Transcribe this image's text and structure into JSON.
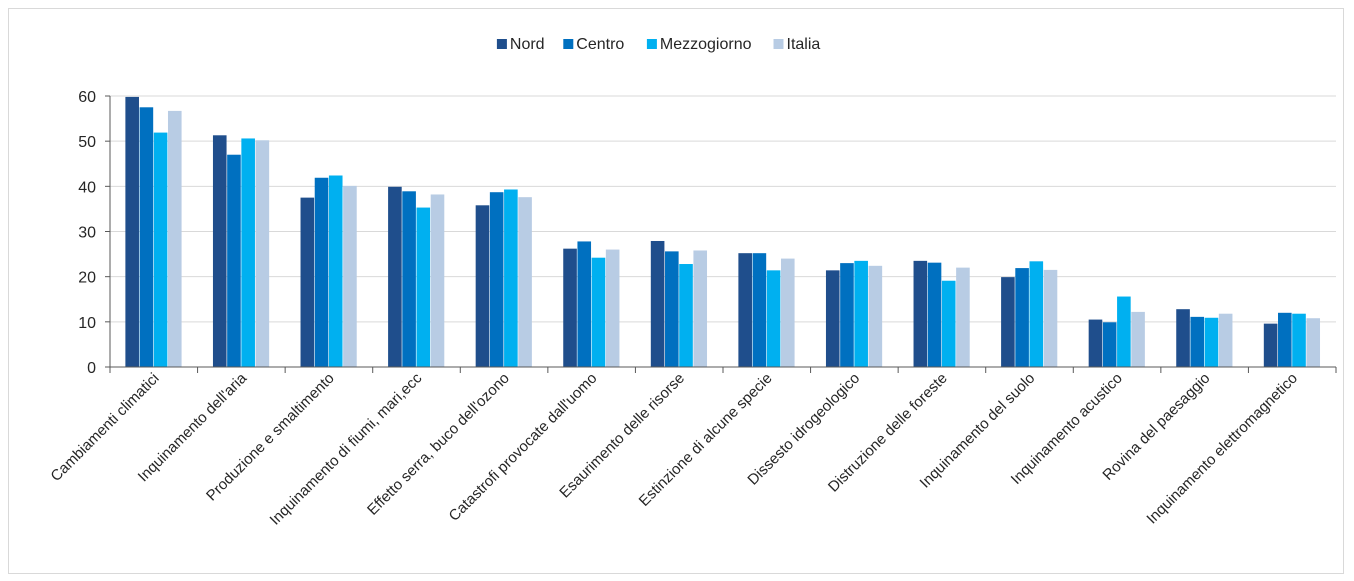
{
  "chart_data": {
    "type": "bar",
    "categories": [
      "Cambiamenti climatici",
      "Inquinamento dell'aria",
      "Produzione e smaltimento",
      "Inquinamento di fiumi, mari,ecc",
      "Effetto serra, buco dell'ozono",
      "Catastrofi provocate dall'uomo",
      "Esaurimento delle risorse",
      "Estinzione di alcune specie",
      "Dissesto idrogeologico",
      "Distruzione delle foreste",
      "Inquinamento del suolo",
      "Inquinamento acustico",
      "Rovina del paesaggio",
      "Inquinamento elettromagnetico"
    ],
    "series": [
      {
        "name": "Nord",
        "color": "#1f4e8c",
        "values": [
          59.8,
          51.3,
          37.5,
          39.9,
          35.8,
          26.2,
          27.9,
          25.2,
          21.4,
          23.5,
          19.9,
          10.5,
          12.8,
          9.6
        ]
      },
      {
        "name": "Centro",
        "color": "#0070c0",
        "values": [
          57.5,
          47.0,
          41.9,
          38.9,
          38.7,
          27.8,
          25.6,
          25.2,
          23.0,
          23.1,
          21.9,
          9.9,
          11.1,
          12.0
        ]
      },
      {
        "name": "Mezzogiorno",
        "color": "#00b0f0",
        "values": [
          51.9,
          50.6,
          42.4,
          35.3,
          39.3,
          24.2,
          22.8,
          21.4,
          23.5,
          19.1,
          23.4,
          15.6,
          10.9,
          11.8
        ]
      },
      {
        "name": "Italia",
        "color": "#b8cce4",
        "values": [
          56.7,
          50.2,
          40.1,
          38.2,
          37.6,
          26.0,
          25.8,
          24.0,
          22.4,
          22.0,
          21.5,
          12.2,
          11.8,
          10.8
        ]
      }
    ],
    "title": "",
    "xlabel": "",
    "ylabel": "",
    "ylim": [
      0,
      60
    ],
    "yticks": [
      0,
      10,
      20,
      30,
      40,
      50,
      60
    ],
    "grid": true,
    "legend": "top-center"
  }
}
